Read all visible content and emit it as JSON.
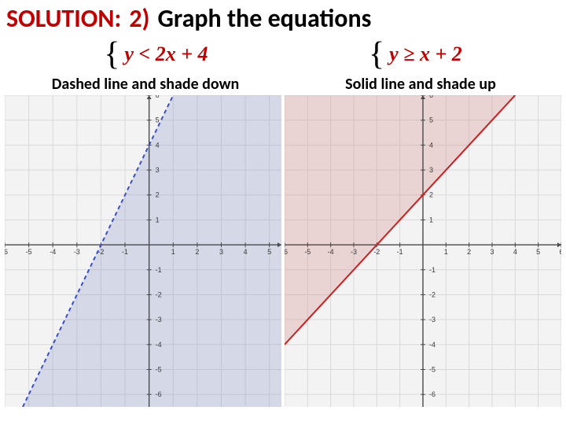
{
  "title": {
    "solution_label": "SOLUTION:",
    "solution_color": "#c00000",
    "step_label": "2)",
    "step_color": "#c00000",
    "rest": "Graph the equations",
    "rest_color": "#000000",
    "fontsize": 32
  },
  "equations": {
    "left": {
      "y": "y",
      "op": "<",
      "rhs": "2x + 4",
      "color": "#c00000"
    },
    "right": {
      "y": "y",
      "op": "≥",
      "rhs": "x + 2",
      "color": "#c00000"
    }
  },
  "captions": {
    "left": "Dashed line and shade down",
    "right": "Solid line and shade up",
    "fontsize": 20,
    "color": "#000000"
  },
  "chart_left": {
    "type": "inequality-graph",
    "xlim": [
      -6,
      5.5
    ],
    "ylim": [
      -6.5,
      6
    ],
    "xtick_step": 1,
    "ytick_step": 1,
    "grid_color": "#d9d9d9",
    "background_color": "#f3f3f3",
    "axis_color": "#4a4a4a",
    "axis_tick_label_color": "#3a3a3a",
    "axis_tick_label_fontsize": 9,
    "line": {
      "slope": 2,
      "intercept": 4,
      "color": "#3a4fc7",
      "width": 2,
      "dash": "5,4"
    },
    "shade": {
      "side": "below",
      "fill": "#8a92c4",
      "opacity": 0.28
    }
  },
  "chart_right": {
    "type": "inequality-graph",
    "xlim": [
      -6,
      6
    ],
    "ylim": [
      -6.5,
      6
    ],
    "xtick_step": 1,
    "ytick_step": 1,
    "grid_color": "#d9d9d9",
    "background_color": "#f3f3f3",
    "axis_color": "#4a4a4a",
    "axis_tick_label_color": "#3a3a3a",
    "axis_tick_label_fontsize": 9,
    "line": {
      "slope": 1,
      "intercept": 2,
      "color": "#cc1f1f",
      "width": 2,
      "dash": "none"
    },
    "shade": {
      "side": "above",
      "fill": "#d58a8a",
      "opacity": 0.3
    }
  }
}
